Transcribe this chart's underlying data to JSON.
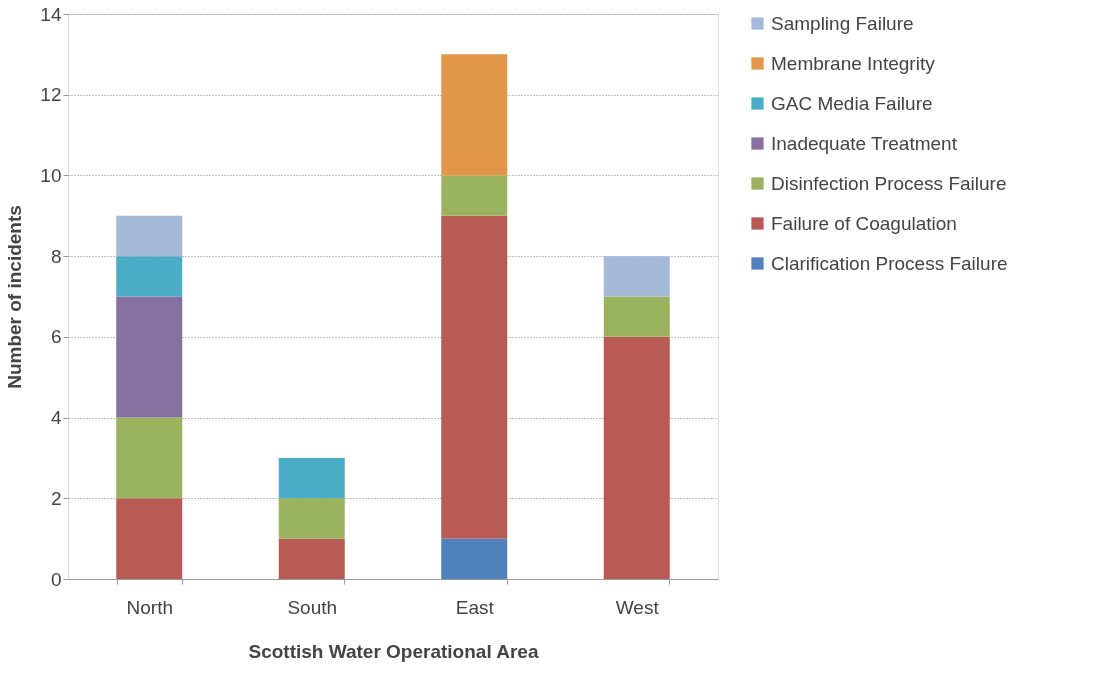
{
  "chart_data": {
    "type": "bar",
    "stacked": true,
    "xlabel": "Scottish Water Operational Area",
    "ylabel": "Number of incidents",
    "categories": [
      "North",
      "South",
      "East",
      "West"
    ],
    "series": [
      {
        "name": "Clarification Process Failure",
        "color": "#4f81bd",
        "values": [
          null,
          null,
          1,
          null
        ]
      },
      {
        "name": "Failure of Coagulation",
        "color": "#b95b55",
        "values": [
          2,
          1,
          8,
          6
        ]
      },
      {
        "name": "Disinfection Process Failure",
        "color": "#9bb35e",
        "values": [
          2,
          1,
          1,
          1
        ]
      },
      {
        "name": "Inadequate Treatment",
        "color": "#8570a0",
        "values": [
          3,
          null,
          null,
          null
        ]
      },
      {
        "name": "GAC Media Failure",
        "color": "#4bacc6",
        "values": [
          1,
          1,
          null,
          null
        ]
      },
      {
        "name": "Membrane Integrity",
        "color": "#e2964a",
        "values": [
          null,
          null,
          3,
          null
        ]
      },
      {
        "name": "Sampling Failure",
        "color": "#a5b9d8",
        "values": [
          1,
          null,
          null,
          1
        ]
      }
    ],
    "ylim": [
      0,
      14
    ],
    "yticks": [
      0,
      2,
      4,
      6,
      8,
      10,
      12,
      14
    ],
    "grid": "y",
    "legend": "right"
  }
}
